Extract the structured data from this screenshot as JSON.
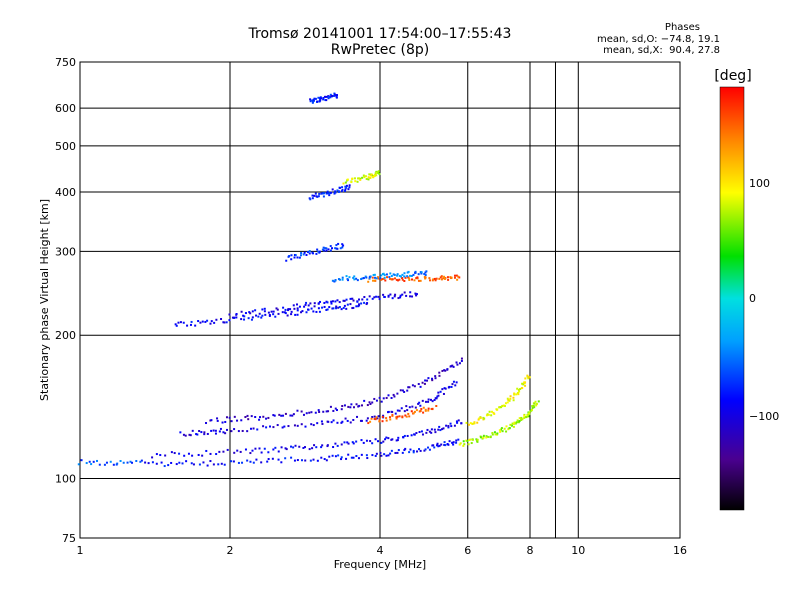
{
  "header": {
    "title": "Tromsø 20141001 17:54:00–17:55:43",
    "subtitle": "RwPretec (8p)",
    "phases_title": "Phases",
    "phases_o": "mean, sd,O: −74.8, 19.1",
    "phases_x": "mean, sd,X:  90.4, 27.8"
  },
  "colorbar": {
    "unit": "[deg]",
    "ticks": [
      "100",
      "0",
      "−100"
    ],
    "tick_values": [
      100,
      0,
      -100
    ],
    "range": [
      -180,
      180
    ]
  },
  "chart_data": {
    "type": "scatter",
    "title": "Tromsø 20141001 17:54:00–17:55:43",
    "subtitle": "RwPretec (8p)",
    "xlabel": "Frequency [MHz]",
    "ylabel": "Stationary phase Virtual Height [km]",
    "x_scale": "log",
    "y_scale": "log",
    "xlim": [
      1,
      16
    ],
    "ylim": [
      75,
      750
    ],
    "x_ticks": [
      "1",
      "2",
      "4",
      "6",
      "8",
      "10",
      "16"
    ],
    "x_tick_values": [
      1,
      2,
      4,
      6,
      8,
      10,
      16
    ],
    "x_grid": [
      2,
      4,
      6,
      8,
      9,
      10
    ],
    "y_ticks": [
      "75",
      "100",
      "200",
      "300",
      "400",
      "500",
      "600",
      "750"
    ],
    "y_tick_values": [
      75,
      100,
      200,
      300,
      400,
      500,
      600,
      750
    ],
    "grid": true,
    "color_meaning": "phase [deg]",
    "legend": "colorbar right",
    "traces": [
      {
        "x": [
          1.0,
          1.35
        ],
        "y": [
          108,
          108
        ],
        "phase": -60
      },
      {
        "x": [
          1.35,
          2.0,
          3.0,
          4.0,
          5.0,
          5.8
        ],
        "y": [
          107,
          108,
          110,
          112,
          116,
          120
        ],
        "phase": -85
      },
      {
        "x": [
          1.4,
          2.2,
          3.0,
          4.0,
          5.0,
          5.9
        ],
        "y": [
          112,
          114,
          117,
          120,
          125,
          132
        ],
        "phase": -95
      },
      {
        "x": [
          1.6,
          2.0,
          3.0,
          4.0,
          5.0,
          5.7
        ],
        "y": [
          124,
          126,
          130,
          135,
          145,
          160
        ],
        "phase": -100
      },
      {
        "x": [
          1.8,
          2.4,
          3.2,
          4.0,
          5.0,
          5.9
        ],
        "y": [
          132,
          135,
          140,
          146,
          160,
          178
        ],
        "phase": -110
      },
      {
        "x": [
          3.8,
          4.5,
          5.2
        ],
        "y": [
          132,
          136,
          142
        ],
        "phase": 150
      },
      {
        "x": [
          5.8,
          6.5,
          7.3,
          7.9,
          8.3
        ],
        "y": [
          118,
          122,
          128,
          136,
          146
        ],
        "phase": 70
      },
      {
        "x": [
          6.0,
          6.8,
          7.5,
          8.0
        ],
        "y": [
          130,
          138,
          150,
          165
        ],
        "phase": 90
      },
      {
        "x": [
          1.55,
          2.0,
          2.6,
          3.2,
          3.8
        ],
        "y": [
          210,
          215,
          222,
          228,
          232
        ],
        "phase": -90
      },
      {
        "x": [
          2.0,
          2.6,
          3.2,
          4.0,
          4.8
        ],
        "y": [
          220,
          228,
          235,
          240,
          245
        ],
        "phase": -95
      },
      {
        "x": [
          3.8,
          4.4,
          5.2,
          5.8
        ],
        "y": [
          262,
          262,
          263,
          265
        ],
        "phase": 150
      },
      {
        "x": [
          3.2,
          3.8,
          4.4,
          5.0
        ],
        "y": [
          262,
          265,
          268,
          270
        ],
        "phase": -50
      },
      {
        "x": [
          2.6,
          3.0,
          3.4
        ],
        "y": [
          290,
          300,
          310
        ],
        "phase": -70
      },
      {
        "x": [
          2.9,
          3.2,
          3.5
        ],
        "y": [
          390,
          400,
          410
        ],
        "phase": -80
      },
      {
        "x": [
          3.4,
          3.8,
          4.0
        ],
        "y": [
          420,
          430,
          440
        ],
        "phase": 80
      },
      {
        "x": [
          2.9,
          3.1,
          3.3
        ],
        "y": [
          620,
          630,
          640
        ],
        "phase": -80
      }
    ]
  }
}
